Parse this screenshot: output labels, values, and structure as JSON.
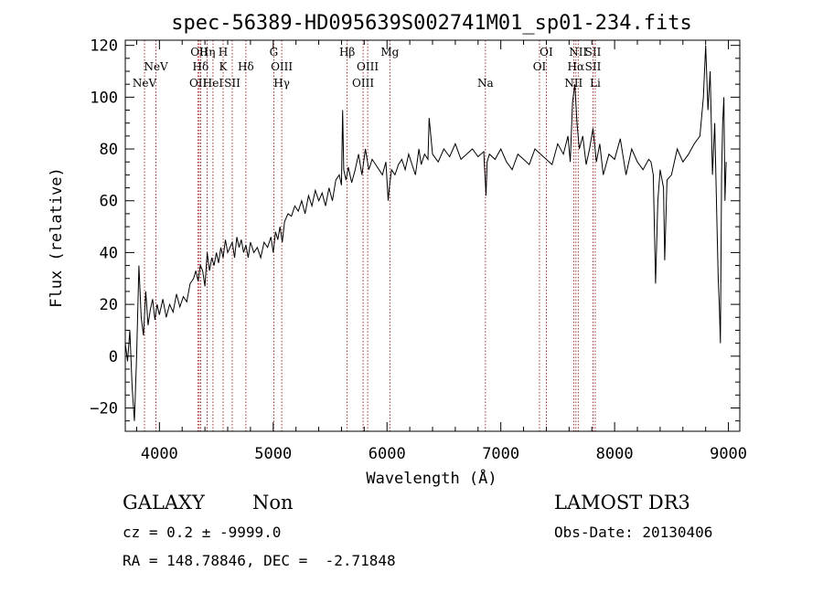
{
  "chart_data": {
    "type": "line",
    "title": "spec-56389-HD095639S002741M01_sp01-234.fits",
    "xlabel": "Wavelength (Å)",
    "ylabel": "Flux (relative)",
    "xlim": [
      3700,
      9100
    ],
    "ylim": [
      -29,
      122
    ],
    "xticks": [
      4000,
      5000,
      6000,
      7000,
      8000,
      9000
    ],
    "yticks": [
      -20,
      0,
      20,
      40,
      60,
      80,
      100,
      120
    ],
    "grid": false,
    "series": [
      {
        "color": "#000000",
        "x": [
          3700,
          3720,
          3740,
          3760,
          3780,
          3800,
          3820,
          3840,
          3860,
          3880,
          3900,
          3920,
          3940,
          3960,
          3980,
          4000,
          4030,
          4060,
          4090,
          4120,
          4150,
          4180,
          4210,
          4240,
          4270,
          4300,
          4320,
          4340,
          4360,
          4380,
          4400,
          4420,
          4440,
          4460,
          4480,
          4500,
          4520,
          4540,
          4560,
          4580,
          4600,
          4620,
          4640,
          4660,
          4680,
          4700,
          4720,
          4740,
          4760,
          4780,
          4800,
          4830,
          4860,
          4890,
          4920,
          4950,
          4980,
          5000,
          5020,
          5040,
          5060,
          5080,
          5100,
          5130,
          5160,
          5190,
          5220,
          5250,
          5280,
          5310,
          5340,
          5370,
          5400,
          5430,
          5460,
          5490,
          5520,
          5550,
          5580,
          5600,
          5610,
          5620,
          5640,
          5660,
          5690,
          5720,
          5750,
          5780,
          5810,
          5840,
          5870,
          5900,
          5930,
          5960,
          5990,
          6010,
          6020,
          6040,
          6070,
          6100,
          6130,
          6160,
          6190,
          6220,
          6250,
          6280,
          6300,
          6330,
          6360,
          6370,
          6400,
          6450,
          6500,
          6550,
          6600,
          6650,
          6700,
          6750,
          6800,
          6850,
          6870,
          6880,
          6900,
          6950,
          7000,
          7050,
          7100,
          7150,
          7200,
          7250,
          7300,
          7350,
          7400,
          7450,
          7500,
          7550,
          7590,
          7610,
          7630,
          7650,
          7670,
          7690,
          7720,
          7750,
          7780,
          7810,
          7840,
          7870,
          7900,
          7950,
          8000,
          8050,
          8100,
          8150,
          8200,
          8250,
          8300,
          8320,
          8340,
          8360,
          8380,
          8400,
          8430,
          8440,
          8460,
          8500,
          8550,
          8600,
          8650,
          8700,
          8750,
          8780,
          8800,
          8820,
          8840,
          8860,
          8880,
          8900,
          8910,
          8920,
          8930,
          8940,
          8950,
          8960,
          8970,
          8980
        ],
        "y": [
          5,
          -2,
          10,
          -12,
          -25,
          0,
          35,
          15,
          8,
          25,
          12,
          18,
          22,
          14,
          20,
          16,
          22,
          15,
          20,
          17,
          24,
          19,
          23,
          21,
          28,
          30,
          33,
          29,
          35,
          33,
          27,
          40,
          33,
          38,
          35,
          40,
          36,
          42,
          38,
          45,
          40,
          42,
          44,
          38,
          46,
          42,
          45,
          40,
          43,
          38,
          44,
          40,
          42,
          38,
          44,
          42,
          46,
          40,
          48,
          45,
          50,
          44,
          52,
          55,
          54,
          58,
          56,
          60,
          55,
          62,
          58,
          64,
          60,
          63,
          58,
          65,
          60,
          68,
          70,
          66,
          95,
          72,
          68,
          73,
          67,
          72,
          78,
          70,
          80,
          72,
          76,
          74,
          72,
          70,
          75,
          60,
          65,
          72,
          70,
          74,
          76,
          72,
          78,
          74,
          70,
          80,
          74,
          78,
          76,
          92,
          78,
          75,
          80,
          77,
          82,
          76,
          78,
          80,
          77,
          79,
          62,
          75,
          78,
          76,
          80,
          75,
          72,
          78,
          76,
          74,
          80,
          78,
          76,
          74,
          82,
          78,
          85,
          75,
          98,
          105,
          90,
          80,
          85,
          74,
          80,
          88,
          75,
          82,
          70,
          78,
          76,
          84,
          70,
          80,
          75,
          72,
          76,
          75,
          70,
          28,
          60,
          72,
          65,
          37,
          68,
          70,
          80,
          75,
          78,
          82,
          85,
          100,
          120,
          95,
          110,
          70,
          90,
          50,
          30,
          20,
          5,
          70,
          90,
          100,
          60,
          75
        ]
      }
    ],
    "annotations": {
      "lines": [
        {
          "wl": 3869,
          "labels": [
            {
              "t": "NeV",
              "row": 3
            }
          ]
        },
        {
          "wl": 3970,
          "labels": [
            {
              "t": "NeV",
              "row": 2
            }
          ]
        },
        {
          "wl": 4340,
          "labels": [
            {
              "t": "OII",
              "row": 3
            }
          ]
        },
        {
          "wl": 4350,
          "labels": [
            {
              "t": "OII",
              "row": 1
            }
          ]
        },
        {
          "wl": 4362,
          "labels": [
            {
              "t": "Hδ",
              "row": 2
            }
          ]
        },
        {
          "wl": 4420,
          "labels": [
            {
              "t": "Hη",
              "row": 1
            }
          ]
        },
        {
          "wl": 4471,
          "labels": [
            {
              "t": "HeI",
              "row": 3
            }
          ]
        },
        {
          "wl": 4560,
          "labels": [
            {
              "t": "H",
              "row": 1
            },
            {
              "t": "K",
              "row": 2
            }
          ]
        },
        {
          "wl": 4640,
          "labels": [
            {
              "t": "SII",
              "row": 3
            }
          ]
        },
        {
          "wl": 4760,
          "labels": [
            {
              "t": "Hδ",
              "row": 2
            }
          ]
        },
        {
          "wl": 5005,
          "labels": [
            {
              "t": "G",
              "row": 1
            }
          ]
        },
        {
          "wl": 5075,
          "labels": [
            {
              "t": "OIII",
              "row": 2
            },
            {
              "t": "Hγ",
              "row": 3
            }
          ]
        },
        {
          "wl": 5650,
          "labels": [
            {
              "t": "Hβ",
              "row": 1
            }
          ]
        },
        {
          "wl": 5790,
          "labels": [
            {
              "t": "OIII",
              "row": 3
            }
          ]
        },
        {
          "wl": 5830,
          "labels": [
            {
              "t": "OIII",
              "row": 2
            }
          ]
        },
        {
          "wl": 6025,
          "labels": [
            {
              "t": "Mg",
              "row": 1
            }
          ]
        },
        {
          "wl": 6865,
          "labels": [
            {
              "t": "Na",
              "row": 3
            }
          ]
        },
        {
          "wl": 7340,
          "labels": [
            {
              "t": "OI",
              "row": 2
            }
          ]
        },
        {
          "wl": 7400,
          "labels": [
            {
              "t": "OI",
              "row": 1
            }
          ]
        },
        {
          "wl": 7640,
          "labels": [
            {
              "t": "NII",
              "row": 3
            }
          ]
        },
        {
          "wl": 7660,
          "labels": [
            {
              "t": "Hα",
              "row": 2
            }
          ]
        },
        {
          "wl": 7680,
          "labels": [
            {
              "t": "NII",
              "row": 1
            }
          ]
        },
        {
          "wl": 7810,
          "labels": [
            {
              "t": "SII",
              "row": 1
            },
            {
              "t": "SII",
              "row": 2
            }
          ]
        },
        {
          "wl": 7830,
          "labels": [
            {
              "t": "Li",
              "row": 3
            }
          ]
        }
      ]
    }
  },
  "info": {
    "class": "GALAXY",
    "subclass": "Non",
    "cz": "cz = 0.2 ± -9999.0",
    "radec": "RA = 148.78846, DEC =  -2.71848",
    "survey": "LAMOST DR3",
    "obsdate": "Obs-Date: 20130406"
  }
}
